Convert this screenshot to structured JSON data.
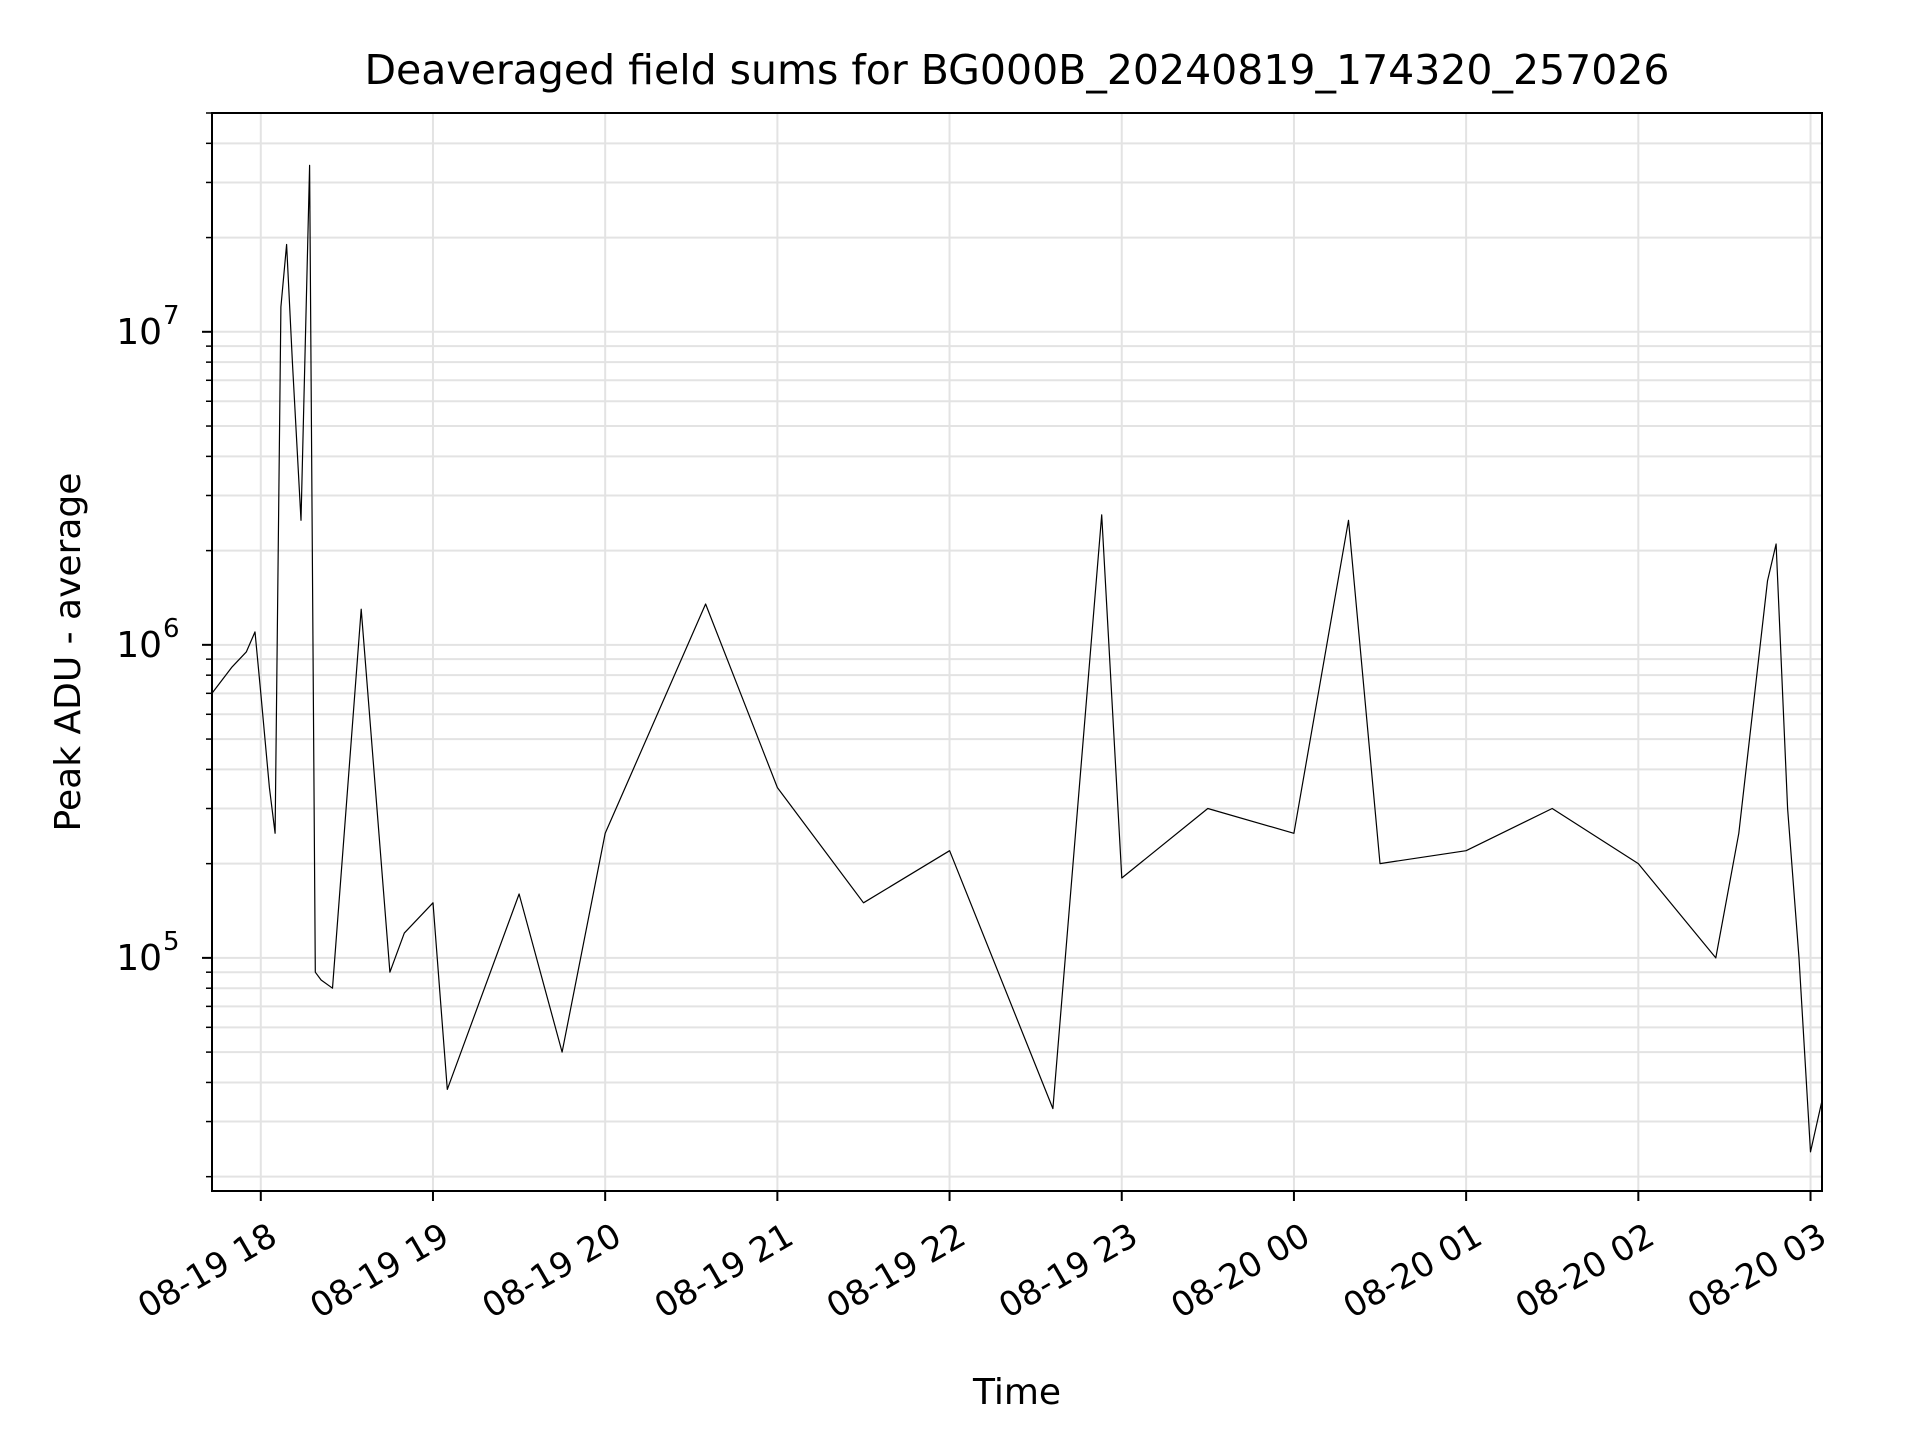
{
  "chart_data": {
    "type": "line",
    "title": "Deaveraged field sums for BG000B_20240819_174320_257026",
    "xlabel": "Time",
    "ylabel": "Peak ADU - average",
    "yscale": "log",
    "ylim": [
      18000,
      50000000
    ],
    "xlim": [
      "2024-08-19 17:43",
      "2024-08-20 03:04"
    ],
    "grid": true,
    "line_color": "#000000",
    "grid_color": "#e3e3e3",
    "x_tick_labels": [
      "08-19 18",
      "08-19 19",
      "08-19 20",
      "08-19 21",
      "08-19 22",
      "08-19 23",
      "08-20 00",
      "08-20 01",
      "08-20 02",
      "08-20 03"
    ],
    "x_ticks": [
      "2024-08-19 18:00",
      "2024-08-19 19:00",
      "2024-08-19 20:00",
      "2024-08-19 21:00",
      "2024-08-19 22:00",
      "2024-08-19 23:00",
      "2024-08-20 00:00",
      "2024-08-20 01:00",
      "2024-08-20 02:00",
      "2024-08-20 03:00"
    ],
    "y_ticks": [
      {
        "value": 100000,
        "base": "10",
        "exp": "5"
      },
      {
        "value": 1000000,
        "base": "10",
        "exp": "6"
      },
      {
        "value": 10000000,
        "base": "10",
        "exp": "7"
      }
    ],
    "series": [
      {
        "x": [
          "2024-08-19 17:43",
          "2024-08-19 17:50",
          "2024-08-19 17:55",
          "2024-08-19 17:58",
          "2024-08-19 18:00",
          "2024-08-19 18:03",
          "2024-08-19 18:05",
          "2024-08-19 18:07",
          "2024-08-19 18:09",
          "2024-08-19 18:11",
          "2024-08-19 18:14",
          "2024-08-19 18:17",
          "2024-08-19 18:19",
          "2024-08-19 18:21",
          "2024-08-19 18:25",
          "2024-08-19 18:35",
          "2024-08-19 18:45",
          "2024-08-19 18:50",
          "2024-08-19 19:00",
          "2024-08-19 19:05",
          "2024-08-19 19:30",
          "2024-08-19 19:45",
          "2024-08-19 20:00",
          "2024-08-19 20:35",
          "2024-08-19 21:00",
          "2024-08-19 21:30",
          "2024-08-19 22:00",
          "2024-08-19 22:36",
          "2024-08-19 22:53",
          "2024-08-19 23:00",
          "2024-08-19 23:30",
          "2024-08-20 00:00",
          "2024-08-20 00:19",
          "2024-08-20 00:30",
          "2024-08-20 01:00",
          "2024-08-20 01:30",
          "2024-08-20 02:00",
          "2024-08-20 02:27",
          "2024-08-20 02:35",
          "2024-08-20 02:45",
          "2024-08-20 02:48",
          "2024-08-20 02:52",
          "2024-08-20 02:56",
          "2024-08-20 03:00",
          "2024-08-20 03:04"
        ],
        "values": [
          700000,
          850000,
          950000,
          1100000,
          700000,
          350000,
          250000,
          12000000,
          19000000,
          8000000,
          2500000,
          34000000,
          90000,
          85000,
          80000,
          1300000,
          90000,
          120000,
          150000,
          38000,
          160000,
          50000,
          250000,
          1350000,
          350000,
          150000,
          220000,
          33000,
          2600000,
          180000,
          300000,
          250000,
          2500000,
          200000,
          220000,
          300000,
          200000,
          100000,
          250000,
          1600000,
          2100000,
          300000,
          100000,
          24000,
          35000
        ]
      }
    ]
  }
}
